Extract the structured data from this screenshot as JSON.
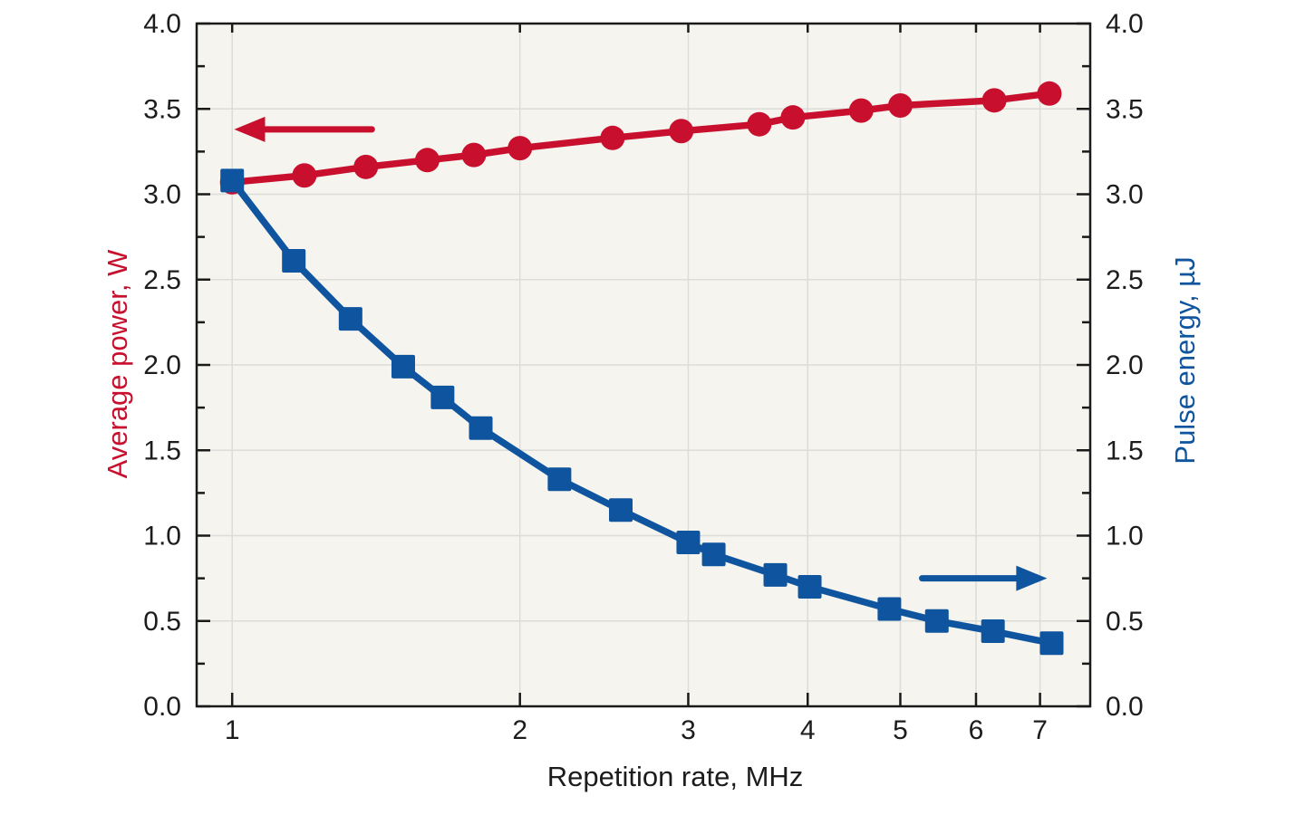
{
  "chart_data": {
    "type": "line",
    "title": "",
    "xlabel": "Repetition rate, MHz",
    "ylabel_left": "Average power, W",
    "ylabel_right": "Pulse energy, µJ",
    "x_scale": "log",
    "xlim": [
      0.918,
      7.9
    ],
    "ylim": [
      0,
      4
    ],
    "x_ticks": [
      1,
      2,
      3,
      4,
      5,
      6,
      7
    ],
    "y_major_ticks": [
      0,
      0.5,
      1,
      1.5,
      2,
      2.5,
      3,
      3.5,
      4
    ],
    "y_minor_ticks": [
      0.25,
      0.75,
      1.25,
      1.75,
      2.25,
      2.75,
      3.25,
      3.75
    ],
    "y_tick_label_format_decimals": 1,
    "grid": true,
    "legend": "none",
    "colors": {
      "accent_red": "#c8102e",
      "accent_blue": "#0f549e",
      "plot_background": "#f5f4ee",
      "page_background": "#ffffff",
      "grid_color": "#dcdcd8",
      "frame_color": "#1a1a1a",
      "tick_label_color": "#1c1c1c"
    },
    "series": [
      {
        "name": "Average power, W",
        "axis": "left",
        "marker": "circle",
        "color": "#c8102e",
        "x": [
          1.0,
          1.19,
          1.38,
          1.6,
          1.79,
          2.0,
          2.5,
          2.95,
          3.56,
          3.86,
          4.55,
          5.0,
          6.27,
          7.16
        ],
        "y": [
          3.07,
          3.11,
          3.16,
          3.2,
          3.23,
          3.27,
          3.33,
          3.37,
          3.41,
          3.45,
          3.49,
          3.52,
          3.55,
          3.59
        ]
      },
      {
        "name": "Pulse energy, µJ",
        "axis": "right",
        "marker": "square",
        "color": "#0f549e",
        "x": [
          1.0,
          1.16,
          1.33,
          1.51,
          1.66,
          1.82,
          2.2,
          2.55,
          3.0,
          3.19,
          3.7,
          4.02,
          4.87,
          5.46,
          6.25,
          7.2
        ],
        "y": [
          3.08,
          2.61,
          2.27,
          1.99,
          1.81,
          1.63,
          1.33,
          1.15,
          0.96,
          0.89,
          0.77,
          0.7,
          0.57,
          0.5,
          0.44,
          0.37
        ]
      }
    ],
    "annotations": [
      {
        "type": "arrow",
        "refers_to": "Average power, W",
        "color": "#c8102e",
        "direction": "left",
        "y": 3.38,
        "x_tail": 1.4,
        "x_tip": 1.005
      },
      {
        "type": "arrow",
        "refers_to": "Pulse energy, µJ",
        "color": "#0f549e",
        "direction": "right",
        "y": 0.75,
        "x_tail": 5.27,
        "x_tip": 7.12
      }
    ]
  }
}
